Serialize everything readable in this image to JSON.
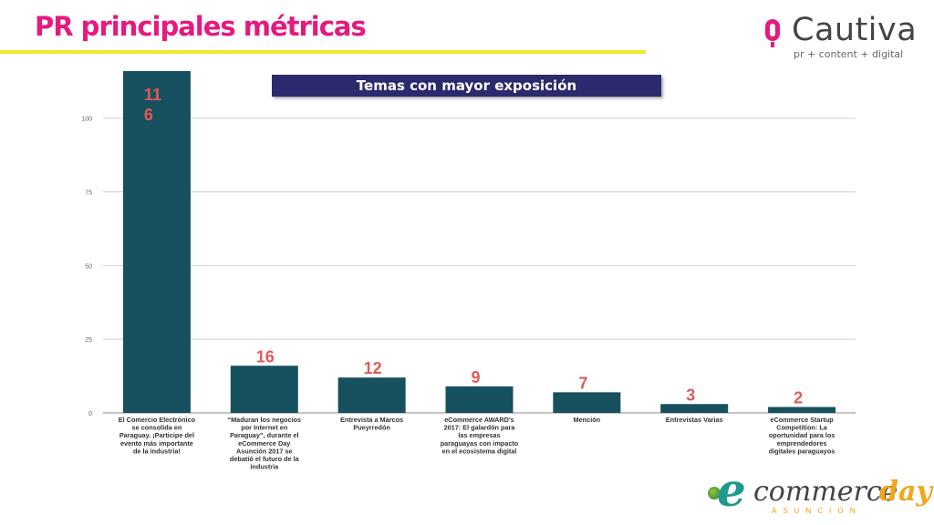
{
  "header": {
    "title": "PR principales métricas"
  },
  "brand": {
    "name": "Cautiva",
    "tagline": "pr + content + digital",
    "icon": "microphone-icon"
  },
  "footer_logo": {
    "e": "e",
    "commerce": "commerce",
    "day": "day",
    "subtitle": "ASUNCIÓN",
    "icon": "globe-icon"
  },
  "colors": {
    "title": "#e6197f",
    "rule": "#f2e92a",
    "bar": "#17505e",
    "value_label": "#e05a5a",
    "chart_title_bg": "#2b2a6e"
  },
  "chart_data": {
    "type": "bar",
    "title": "Temas con mayor exposición",
    "xlabel": "",
    "ylabel": "",
    "ylim": [
      0,
      116
    ],
    "y_ticks": [
      0,
      25,
      50,
      75,
      100
    ],
    "grid": true,
    "categories": [
      "El Comercio Electrónico se consolida en Paraguay. ¡Participe del evento más importante de la industria!",
      "“Maduran los negocios por Internet en Paraguay”, durante el eCommerce Day Asunción 2017 se debatió el futuro de la industria",
      "Entrevista a Marcos Pueyrredón",
      "eCommerce AWARD's 2017: El galardón para las empresas paraguayas con impacto en el ecosistema digital",
      "Mención",
      "Entrevistas Varias",
      "eCommerce Startup Competition: La oportunidad para los emprendedores digitales paraguayos"
    ],
    "category_lines": [
      [
        "El Comercio Electrónico",
        "se consolida en",
        "Paraguay. ¡Participe del",
        "evento más importante",
        "de la industria!"
      ],
      [
        "“Maduran los negocios",
        "por Internet en",
        "Paraguay”, durante el",
        "eCommerce Day",
        "Asunción 2017 se",
        "debatió el futuro de la",
        "industria"
      ],
      [
        "Entrevista a Marcos",
        "Pueyrredón"
      ],
      [
        "eCommerce AWARD's",
        "2017: El galardón para",
        "las empresas",
        "paraguayas con impacto",
        "en el ecosistema digital"
      ],
      [
        "Mención"
      ],
      [
        "Entrevistas Varias"
      ],
      [
        "eCommerce Startup",
        "Competition: La",
        "oportunidad para los",
        "emprendedores",
        "digitales paraguayos"
      ]
    ],
    "values": [
      116,
      16,
      12,
      9,
      7,
      3,
      2
    ],
    "value_labels": [
      [
        "11",
        "6"
      ],
      [
        "16"
      ],
      [
        "12"
      ],
      [
        "9"
      ],
      [
        "7"
      ],
      [
        "3"
      ],
      [
        "2"
      ]
    ]
  }
}
